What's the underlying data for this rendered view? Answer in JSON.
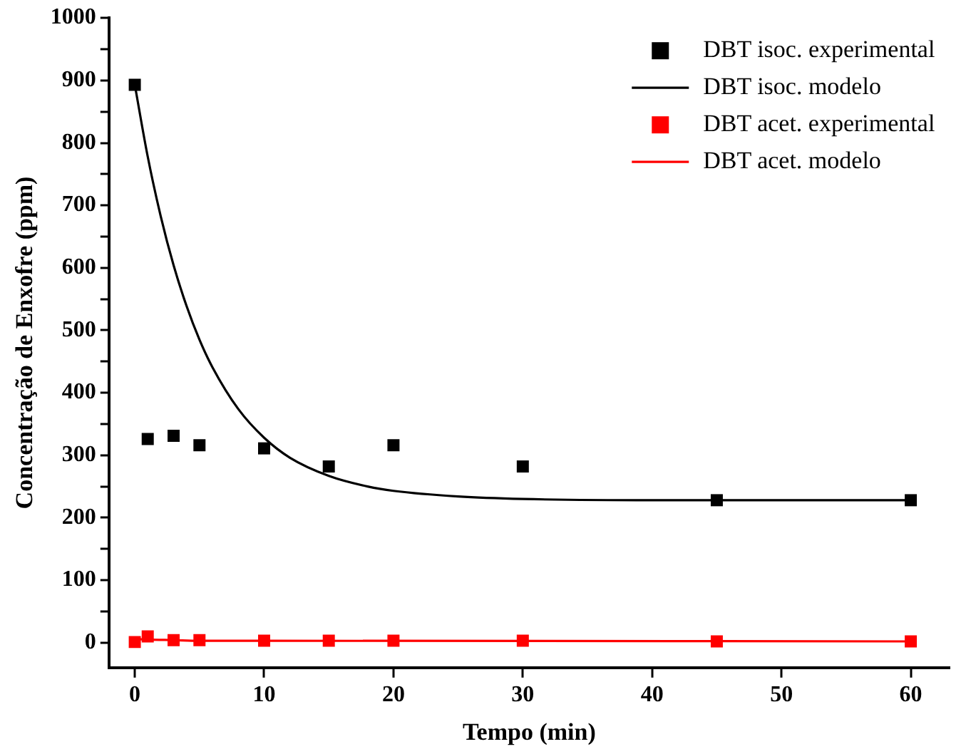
{
  "chart_data": {
    "type": "scatter",
    "xlabel": "Tempo (min)",
    "ylabel": "Concentração de Enxofre (ppm)",
    "xlim": [
      -2,
      63
    ],
    "ylim": [
      -40,
      1000
    ],
    "xticks": [
      0,
      10,
      20,
      30,
      40,
      50,
      60
    ],
    "yticks": [
      0,
      {
        "value": 50,
        "label": null
      },
      100,
      {
        "value": 150,
        "label": null
      },
      200,
      {
        "value": 250,
        "label": null
      },
      300,
      {
        "value": 350,
        "label": null
      },
      400,
      {
        "value": 450,
        "label": null
      },
      500,
      {
        "value": 550,
        "label": null
      },
      600,
      {
        "value": 650,
        "label": null
      },
      700,
      {
        "value": 750,
        "label": null
      },
      800,
      {
        "value": 850,
        "label": null
      },
      900,
      {
        "value": 950,
        "label": null
      },
      1000
    ],
    "grid": false,
    "legend": "top right",
    "marker": "square",
    "series": [
      {
        "name": "DBT isoc. experimental",
        "color": "#000000",
        "x": [
          0,
          1,
          3,
          5,
          10,
          15,
          20,
          30,
          45,
          60
        ],
        "values": [
          893,
          326,
          331,
          316,
          311,
          282,
          316,
          282,
          228,
          228
        ]
      },
      {
        "name": "DBT isoc. modelo",
        "type": "line",
        "marker": "none",
        "color": "#000000",
        "x": [
          0,
          1,
          2,
          3,
          4,
          5,
          6,
          8,
          10,
          12,
          15,
          18,
          20,
          25,
          30,
          40,
          50,
          60
        ],
        "values": [
          893,
          778,
          683,
          604,
          539,
          485,
          441,
          374,
          328,
          296,
          267,
          250,
          243,
          234,
          230,
          228,
          228,
          228
        ]
      },
      {
        "name": "DBT acet. experimental",
        "color": "#ff0000",
        "x": [
          0,
          1,
          3,
          5,
          10,
          15,
          20,
          30,
          45,
          60
        ],
        "values": [
          1,
          10,
          4,
          4,
          3,
          3,
          3,
          3,
          2,
          2
        ]
      },
      {
        "name": "DBT acet. modelo",
        "type": "line",
        "marker": "none",
        "color": "#ff0000",
        "x": [
          0,
          1,
          3,
          5,
          10,
          60
        ],
        "values": [
          6,
          5,
          4,
          3,
          3,
          2
        ]
      }
    ]
  }
}
